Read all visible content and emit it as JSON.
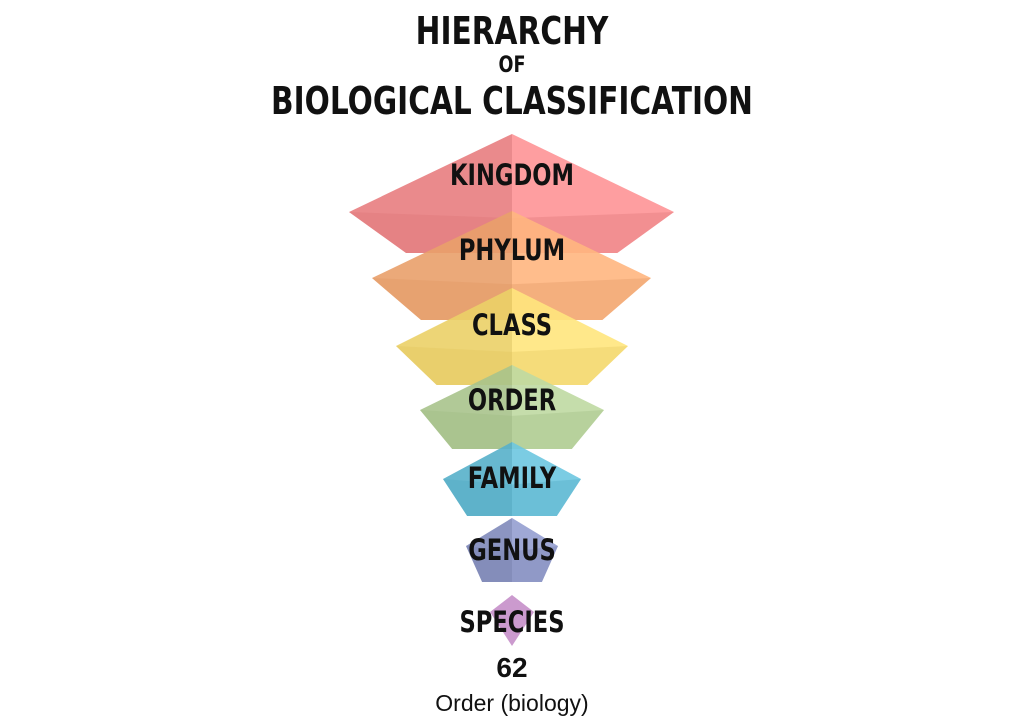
{
  "title": {
    "line1": "HIERARCHY",
    "line2": "OF",
    "line3": "BIOLOGICAL CLASSIFICATION"
  },
  "levels": [
    {
      "label": "KINGDOM",
      "color": "#f4898c"
    },
    {
      "label": "PHYLUM",
      "color": "#f5ac76"
    },
    {
      "label": "CLASS",
      "color": "#f7dc73"
    },
    {
      "label": "ORDER",
      "color": "#b5cf98"
    },
    {
      "label": "FAMILY",
      "color": "#63bcd6"
    },
    {
      "label": "GENUS",
      "color": "#8b95c6"
    },
    {
      "label": "SPECIES",
      "color": "#c58fc9"
    }
  ],
  "caption": {
    "number": "62",
    "text": "Order (biology)"
  }
}
